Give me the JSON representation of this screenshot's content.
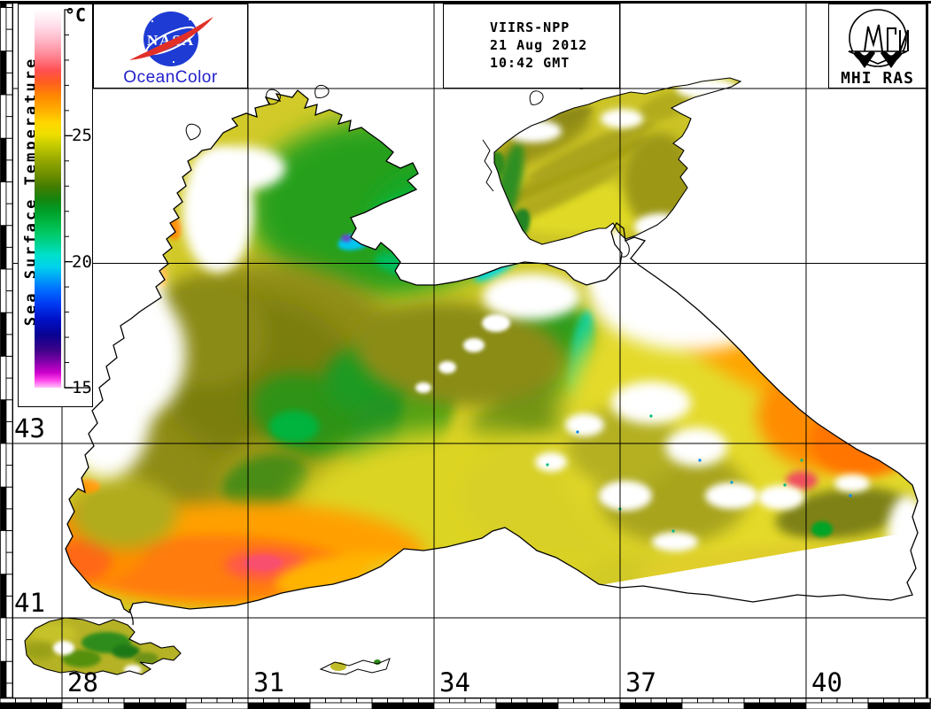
{
  "colorbar": {
    "unit_label": "°C",
    "title": "Sea Surface Temperature",
    "min": 15,
    "max": 30,
    "major_ticks": [
      25,
      20,
      15
    ],
    "gradient_stops": [
      [
        0,
        "#ffffff"
      ],
      [
        4,
        "#ffe0ec"
      ],
      [
        8,
        "#ffb8c8"
      ],
      [
        12,
        "#ff8896"
      ],
      [
        16,
        "#ff5054"
      ],
      [
        19,
        "#ff5c20"
      ],
      [
        23,
        "#ff8a00"
      ],
      [
        27,
        "#ffb400"
      ],
      [
        30,
        "#ffd800"
      ],
      [
        33,
        "#eede00"
      ],
      [
        36,
        "#c2ca00"
      ],
      [
        40,
        "#94a600"
      ],
      [
        44,
        "#6a8c00"
      ],
      [
        47,
        "#407c02"
      ],
      [
        50,
        "#16840e"
      ],
      [
        53,
        "#009c26"
      ],
      [
        56,
        "#00b440"
      ],
      [
        59,
        "#00c864"
      ],
      [
        62,
        "#00d494"
      ],
      [
        65,
        "#00e0cc"
      ],
      [
        68,
        "#00d2ec"
      ],
      [
        71,
        "#00a2f6"
      ],
      [
        74,
        "#006eff"
      ],
      [
        78,
        "#0038f2"
      ],
      [
        82,
        "#0010c6"
      ],
      [
        86,
        "#080292"
      ],
      [
        90,
        "#3c0388"
      ],
      [
        93,
        "#7e02a8"
      ],
      [
        96,
        "#cc00cc"
      ],
      [
        98,
        "#ff44ea"
      ],
      [
        100,
        "#ffc2f8"
      ]
    ]
  },
  "branding": {
    "nasa_wordmark": "NASA",
    "product": "OceanColor",
    "nasa_blue": "#1e3bd4",
    "nasa_red": "#e23028"
  },
  "scene": {
    "sensor": "VIIRS-NPP",
    "date": "21 Aug 2012",
    "time": "10:42 GMT"
  },
  "institute": {
    "label": "MHI RAS"
  },
  "map": {
    "lat_labels": [
      "43",
      "41"
    ],
    "lon_labels": [
      "28",
      "31",
      "34",
      "37",
      "40"
    ]
  }
}
